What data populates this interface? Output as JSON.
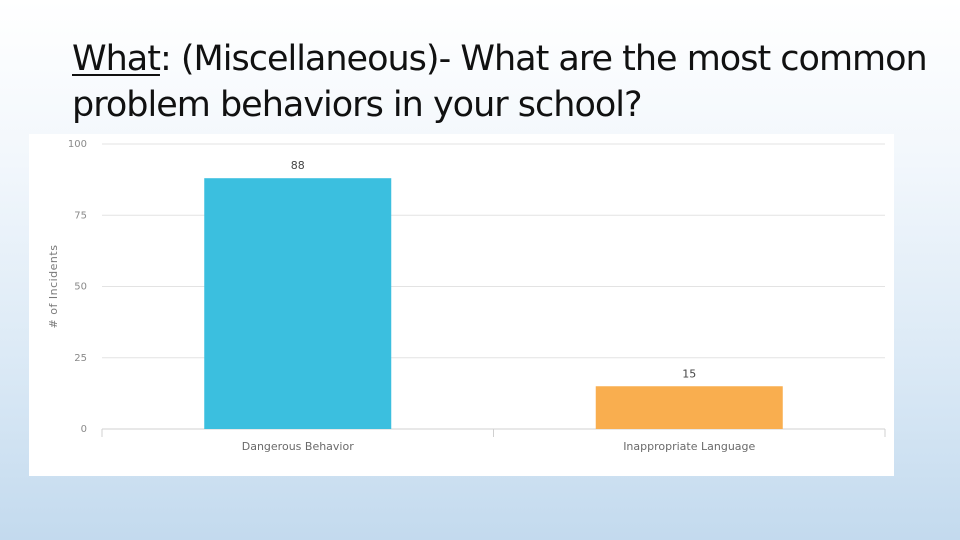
{
  "slide": {
    "title_prefix": "What",
    "title_colon": ": ",
    "title_rest": "(Miscellaneous)- What are the most common problem behaviors in your school?"
  },
  "chart_data": {
    "type": "bar",
    "categories": [
      "Dangerous Behavior",
      "Inappropriate Language"
    ],
    "values": [
      88,
      15
    ],
    "ylabel": "# of Incidents",
    "xlabel": "",
    "ylim": [
      0,
      100
    ],
    "yticks": [
      0,
      25,
      50,
      75,
      100
    ],
    "grid": true,
    "colors": [
      "#3bbfdf",
      "#f9ae4f"
    ]
  }
}
